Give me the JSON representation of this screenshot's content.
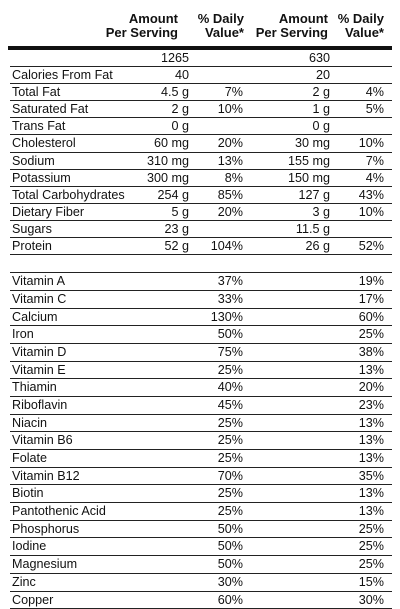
{
  "headers": [
    "Amount\nPer Serving",
    "% Daily\nValue*",
    "Amount\nPer Serving",
    "% Daily\nValue*"
  ],
  "nutrients": [
    {
      "name": "",
      "a1": "1265",
      "d1": "",
      "a2": "630",
      "d2": ""
    },
    {
      "name": "Calories From Fat",
      "a1": "40",
      "d1": "",
      "a2": "20",
      "d2": ""
    },
    {
      "name": "Total Fat",
      "a1": "4.5 g",
      "d1": "7%",
      "a2": "2 g",
      "d2": "4%"
    },
    {
      "name": "Saturated Fat",
      "a1": "2 g",
      "d1": "10%",
      "a2": "1 g",
      "d2": "5%"
    },
    {
      "name": "Trans Fat",
      "a1": "0 g",
      "d1": "",
      "a2": "0 g",
      "d2": ""
    },
    {
      "name": "Cholesterol",
      "a1": "60 mg",
      "d1": "20%",
      "a2": "30 mg",
      "d2": "10%"
    },
    {
      "name": "Sodium",
      "a1": "310 mg",
      "d1": "13%",
      "a2": "155 mg",
      "d2": "7%"
    },
    {
      "name": "Potassium",
      "a1": "300 mg",
      "d1": "8%",
      "a2": "150 mg",
      "d2": "4%"
    },
    {
      "name": "Total Carbohydrates",
      "a1": "254 g",
      "d1": "85%",
      "a2": "127 g",
      "d2": "43%"
    },
    {
      "name": "Dietary Fiber",
      "a1": "5 g",
      "d1": "20%",
      "a2": "3 g",
      "d2": "10%"
    },
    {
      "name": "Sugars",
      "a1": "23 g",
      "d1": "",
      "a2": "11.5 g",
      "d2": ""
    },
    {
      "name": "Protein",
      "a1": "52 g",
      "d1": "104%",
      "a2": "26 g",
      "d2": "52%"
    }
  ],
  "vitamins": [
    {
      "name": "Vitamin A",
      "d1": "37%",
      "d2": "19%"
    },
    {
      "name": "Vitamin C",
      "d1": "33%",
      "d2": "17%"
    },
    {
      "name": "Calcium",
      "d1": "130%",
      "d2": "60%"
    },
    {
      "name": "Iron",
      "d1": "50%",
      "d2": "25%"
    },
    {
      "name": "Vitamin D",
      "d1": "75%",
      "d2": "38%"
    },
    {
      "name": "Vitamin E",
      "d1": "25%",
      "d2": "13%"
    },
    {
      "name": "Thiamin",
      "d1": "40%",
      "d2": "20%"
    },
    {
      "name": "Riboflavin",
      "d1": "45%",
      "d2": "23%"
    },
    {
      "name": "Niacin",
      "d1": "25%",
      "d2": "13%"
    },
    {
      "name": "Vitamin B6",
      "d1": "25%",
      "d2": "13%"
    },
    {
      "name": "Folate",
      "d1": "25%",
      "d2": "13%"
    },
    {
      "name": "Vitamin B12",
      "d1": "70%",
      "d2": "35%"
    },
    {
      "name": "Biotin",
      "d1": "25%",
      "d2": "13%"
    },
    {
      "name": "Pantothenic Acid",
      "d1": "25%",
      "d2": "13%"
    },
    {
      "name": "Phosphorus",
      "d1": "50%",
      "d2": "25%"
    },
    {
      "name": "Iodine",
      "d1": "50%",
      "d2": "25%"
    },
    {
      "name": "Magnesium",
      "d1": "50%",
      "d2": "25%"
    },
    {
      "name": "Zinc",
      "d1": "30%",
      "d2": "15%"
    },
    {
      "name": "Copper",
      "d1": "60%",
      "d2": "30%"
    }
  ]
}
